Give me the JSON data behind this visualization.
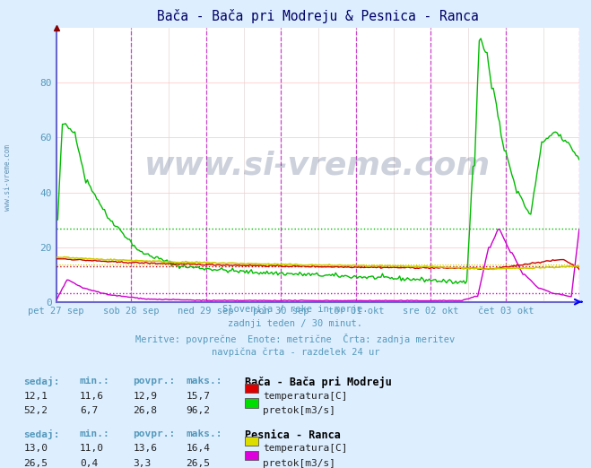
{
  "title": "Bača - Bača pri Modreju & Pesnica - Ranca",
  "bg_color": "#ddeeff",
  "plot_bg_color": "#ffffff",
  "x_labels": [
    "pet 27 sep",
    "sob 28 sep",
    "ned 29 sep",
    "pon 30 sep",
    "tor 01 okt",
    "sre 02 okt",
    "čet 03 okt"
  ],
  "y_ticks": [
    0,
    20,
    40,
    60,
    80
  ],
  "subtitle_lines": [
    "Slovenija / reke in morje.",
    "zadnji teden / 30 minut.",
    "Meritve: povprečne  Enote: metrične  Črta: zadnja meritev",
    "navpična črta - razdelek 24 ur"
  ],
  "stations": [
    {
      "name": "Bača - Bača pri Modreju",
      "rows": [
        {
          "sedaj": "12,1",
          "min": "11,6",
          "povpr": "12,9",
          "maks": "15,7",
          "color": "#dd0000",
          "label": "temperatura[C]"
        },
        {
          "sedaj": "52,2",
          "min": "6,7",
          "povpr": "26,8",
          "maks": "96,2",
          "color": "#00dd00",
          "label": "pretok[m3/s]"
        }
      ]
    },
    {
      "name": "Pesnica - Ranca",
      "rows": [
        {
          "sedaj": "13,0",
          "min": "11,0",
          "povpr": "13,6",
          "maks": "16,4",
          "color": "#dddd00",
          "label": "temperatura[C]"
        },
        {
          "sedaj": "26,5",
          "min": "0,4",
          "povpr": "3,3",
          "maks": "26,5",
          "color": "#dd00dd",
          "label": "pretok[m3/s]"
        }
      ]
    }
  ],
  "n_points": 336,
  "avg_baca_temp": 12.9,
  "avg_baca_pretok": 26.8,
  "avg_pesnica_temp": 13.6,
  "avg_pesnica_pretok": 3.3,
  "title_color": "#000066",
  "label_color": "#5599bb",
  "axes_color": "#5599bb",
  "vline_color": "#cc44cc",
  "hgrid_color": "#ffcccc",
  "vgrid_color": "#ddcccc",
  "border_color": "#6666cc"
}
